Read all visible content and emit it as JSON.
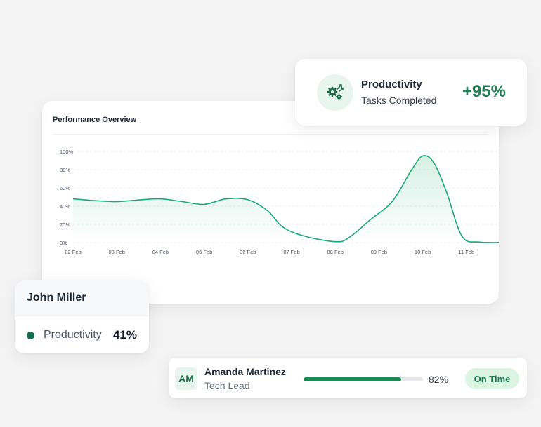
{
  "colors": {
    "accent": "#1e8a55",
    "line": "#1aaa72",
    "text": "#1f2937"
  },
  "productivity_card": {
    "icon": "gears-growth-icon",
    "title": "Productivity",
    "subtitle": "Tasks Completed",
    "value": "+95%"
  },
  "person_card": {
    "name": "John Miller",
    "metric_label": "Productivity",
    "metric_value": "41%"
  },
  "member_row": {
    "initials": "AM",
    "name": "Amanda Martinez",
    "role": "Tech Lead",
    "progress": 82,
    "progress_label": "82%",
    "status": "On Time"
  },
  "chart_data": {
    "type": "area",
    "title": "Performance Overview",
    "categories": [
      "02 Feb",
      "03 Feb",
      "04 Feb",
      "05 Feb",
      "06 Feb",
      "07 Feb",
      "08 Feb",
      "09 Feb",
      "10 Feb",
      "11 Feb"
    ],
    "y_ticks": [
      "100%",
      "80%",
      "60%",
      "40%",
      "20%",
      "0%"
    ],
    "ylim": [
      0,
      100
    ],
    "x_values": [
      0,
      0.5,
      1,
      1.55,
      2,
      2.5,
      3,
      3.5,
      4,
      4.45,
      4.8,
      5.3,
      6,
      6.3,
      6.8,
      7.3,
      7.75,
      8,
      8.25,
      8.55,
      8.9,
      9.3,
      10
    ],
    "values": [
      48,
      46,
      45,
      47,
      48,
      45,
      42,
      48,
      47,
      35,
      17,
      7,
      1,
      5,
      25,
      45,
      80,
      95,
      88,
      55,
      7,
      0.5,
      0.5
    ],
    "grid": true
  }
}
